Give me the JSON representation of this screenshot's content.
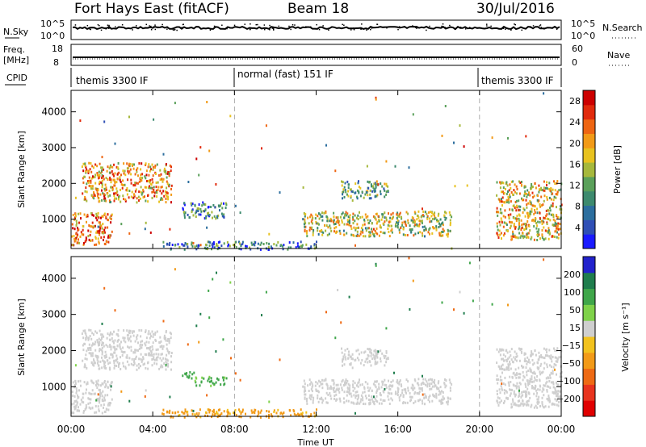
{
  "header": {
    "title": "Fort Hays East (fitACF)",
    "beam": "Beam 18",
    "date": "30/Jul/2016"
  },
  "strips": {
    "nsky_label": "N.Sky",
    "nsky_ticks": [
      "10^5",
      "10^0"
    ],
    "nsearch_label": "N.Search",
    "nsearch_ticks": [
      "10^5",
      "10^0"
    ],
    "freq_label_top": "Freq.",
    "freq_label_bottom": "[MHz]",
    "freq_ticks": [
      "18",
      "8"
    ],
    "nave_label": "Nave",
    "nave_ticks": [
      "60",
      "0"
    ],
    "cpid_label": "CPID",
    "cpid_segments": [
      {
        "label": "themis 3300 IF",
        "start_h": 0,
        "end_h": 8
      },
      {
        "label": "normal (fast) 151 IF",
        "start_h": 8,
        "end_h": 20
      },
      {
        "label": "themis 3300 IF",
        "start_h": 20,
        "end_h": 24
      }
    ]
  },
  "chart_data": [
    {
      "type": "heatmap",
      "title": "",
      "xlabel": "Time UT",
      "ylabel": "Slant Range [km]",
      "xlim": [
        0,
        24
      ],
      "ylim": [
        180,
        4600
      ],
      "x_tick_labels": [
        "00:00",
        "04:00",
        "08:00",
        "12:00",
        "16:00",
        "20:00",
        "00:00"
      ],
      "x_ticks_h": [
        0,
        4,
        8,
        12,
        16,
        20,
        24
      ],
      "y_ticks": [
        1000,
        2000,
        3000,
        4000
      ],
      "colorbar": {
        "label": "Power [dB]",
        "ticks": [
          4,
          8,
          12,
          16,
          20,
          24,
          28
        ],
        "range": [
          0,
          30
        ],
        "colors": [
          "#1a1aff",
          "#2f4fb5",
          "#2c6e9e",
          "#3d8a6e",
          "#5aa05a",
          "#a6b83c",
          "#e8c21f",
          "#f29a17",
          "#ee6512",
          "#e12a0c",
          "#cc0000"
        ]
      },
      "echo_regions": [
        {
          "t_start": 0.5,
          "t_end": 4.9,
          "r_low": 1500,
          "r_high": 2600,
          "value": 20
        },
        {
          "t_start": 0.0,
          "t_end": 2.0,
          "r_low": 300,
          "r_high": 1200,
          "value": 22
        },
        {
          "t_start": 5.4,
          "t_end": 7.6,
          "r_low": 1050,
          "r_high": 1500,
          "value": 8
        },
        {
          "t_start": 11.3,
          "t_end": 18.6,
          "r_low": 550,
          "r_high": 1250,
          "value": 16
        },
        {
          "t_start": 13.2,
          "t_end": 15.5,
          "r_low": 1600,
          "r_high": 2100,
          "value": 12
        },
        {
          "t_start": 20.8,
          "t_end": 24.0,
          "r_low": 450,
          "r_high": 2100,
          "value": 18
        },
        {
          "t_start": 4.4,
          "t_end": 12.0,
          "r_low": 180,
          "r_high": 400,
          "value": 8
        }
      ]
    },
    {
      "type": "heatmap",
      "title": "",
      "xlabel": "Time UT",
      "ylabel": "Slant Range [km]",
      "xlim": [
        0,
        24
      ],
      "ylim": [
        180,
        4600
      ],
      "x_tick_labels": [
        "00:00",
        "04:00",
        "08:00",
        "12:00",
        "16:00",
        "20:00",
        "00:00"
      ],
      "x_ticks_h": [
        0,
        4,
        8,
        12,
        16,
        20,
        24
      ],
      "y_ticks": [
        1000,
        2000,
        3000,
        4000
      ],
      "colorbar": {
        "label": "Velocity [m s⁻¹]",
        "ticks": [
          "200",
          "100",
          "50",
          "15",
          "−15",
          "−50",
          "−100",
          "−200"
        ],
        "tick_values": [
          200,
          100,
          50,
          15,
          -15,
          -50,
          -100,
          -200
        ],
        "colors": [
          "#2222cc",
          "#1f7d4d",
          "#3fa64a",
          "#7fd24a",
          "#cfcfcf",
          "#f2c21e",
          "#f29a18",
          "#ee6a14",
          "#e8341e",
          "#e00000"
        ]
      },
      "echo_regions": [
        {
          "t_start": 0.5,
          "t_end": 4.9,
          "r_low": 1500,
          "r_high": 2600,
          "value": 0
        },
        {
          "t_start": 0.0,
          "t_end": 2.0,
          "r_low": 300,
          "r_high": 1200,
          "value": 0
        },
        {
          "t_start": 5.4,
          "t_end": 6.0,
          "r_low": 1250,
          "r_high": 1500,
          "value": 60
        },
        {
          "t_start": 6.0,
          "t_end": 7.6,
          "r_low": 1050,
          "r_high": 1300,
          "value": 40
        },
        {
          "t_start": 11.3,
          "t_end": 18.6,
          "r_low": 550,
          "r_high": 1250,
          "value": 0
        },
        {
          "t_start": 13.2,
          "t_end": 15.5,
          "r_low": 1600,
          "r_high": 2100,
          "value": 0
        },
        {
          "t_start": 20.8,
          "t_end": 24.0,
          "r_low": 450,
          "r_high": 2100,
          "value": 0
        },
        {
          "t_start": 4.4,
          "t_end": 12.0,
          "r_low": 180,
          "r_high": 400,
          "value": -40
        }
      ]
    }
  ]
}
